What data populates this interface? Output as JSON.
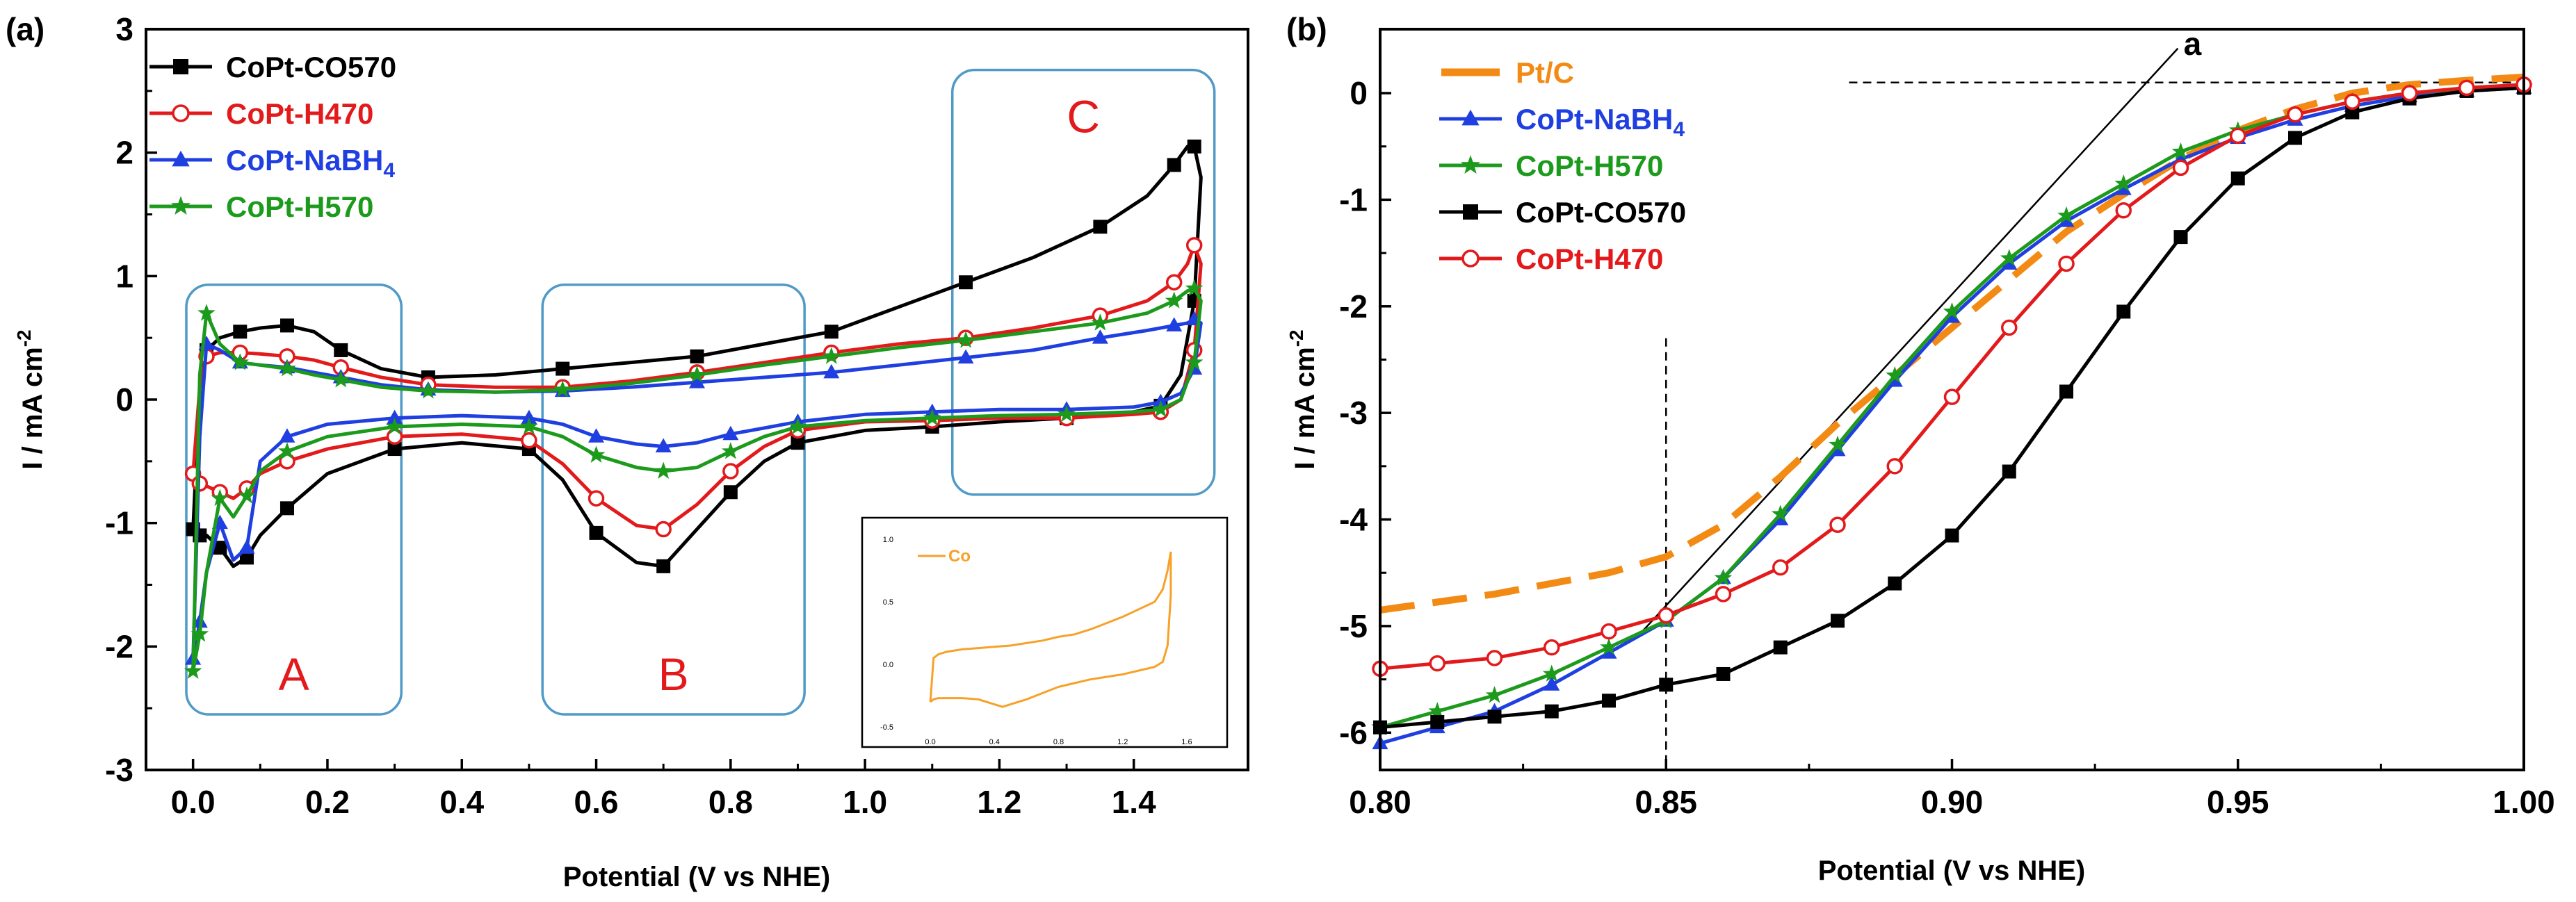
{
  "chart_data": [
    {
      "panel": "(a)",
      "type": "line",
      "xlabel": "Potential (V vs NHE)",
      "ylabel": "I / mA cm",
      "ylabel_sup": "-2",
      "xlim": [
        -0.07,
        1.57
      ],
      "ylim": [
        -3,
        3
      ],
      "xticks": [
        "0.0",
        "0.2",
        "0.4",
        "0.6",
        "0.8",
        "1.0",
        "1.2",
        "1.4"
      ],
      "yticks": [
        "3",
        "2",
        "1",
        "0",
        "-1",
        "-2",
        "-3"
      ],
      "regions": [
        {
          "label": "A",
          "x": [
            -0.01,
            0.31
          ],
          "y": [
            -2.55,
            0.93
          ]
        },
        {
          "label": "B",
          "x": [
            0.52,
            0.91
          ],
          "y": [
            -2.55,
            0.93
          ]
        },
        {
          "label": "C",
          "x": [
            1.13,
            1.52
          ],
          "y": [
            -0.77,
            2.67
          ]
        }
      ],
      "series": [
        {
          "name": "CoPt-CO570",
          "color": "#000000",
          "marker": "square",
          "x": [
            0.0,
            0.01,
            0.02,
            0.04,
            0.07,
            0.1,
            0.14,
            0.18,
            0.22,
            0.28,
            0.35,
            0.45,
            0.55,
            0.65,
            0.75,
            0.85,
            0.95,
            1.05,
            1.15,
            1.25,
            1.35,
            1.42,
            1.46,
            1.48,
            1.49,
            1.5,
            1.49,
            1.47,
            1.44,
            1.4,
            1.3,
            1.2,
            1.1,
            1.0,
            0.9,
            0.85,
            0.8,
            0.75,
            0.7,
            0.66,
            0.6,
            0.55,
            0.5,
            0.4,
            0.3,
            0.2,
            0.14,
            0.1,
            0.08,
            0.06,
            0.04,
            0.02,
            0.01,
            0.0
          ],
          "y": [
            -1.05,
            0.1,
            0.4,
            0.5,
            0.55,
            0.58,
            0.6,
            0.55,
            0.4,
            0.25,
            0.18,
            0.2,
            0.25,
            0.3,
            0.35,
            0.45,
            0.55,
            0.75,
            0.95,
            1.15,
            1.4,
            1.65,
            1.9,
            2.05,
            2.05,
            1.8,
            0.8,
            0.2,
            -0.05,
            -0.1,
            -0.15,
            -0.18,
            -0.22,
            -0.25,
            -0.35,
            -0.5,
            -0.75,
            -1.05,
            -1.35,
            -1.32,
            -1.08,
            -0.65,
            -0.4,
            -0.35,
            -0.4,
            -0.6,
            -0.88,
            -1.1,
            -1.28,
            -1.35,
            -1.2,
            -1.1,
            -1.1,
            -1.05
          ]
        },
        {
          "name": "CoPt-H470",
          "color": "#e31a1c",
          "marker": "circle",
          "x": [
            0.0,
            0.01,
            0.02,
            0.04,
            0.07,
            0.1,
            0.14,
            0.18,
            0.22,
            0.28,
            0.35,
            0.45,
            0.55,
            0.65,
            0.75,
            0.85,
            0.95,
            1.05,
            1.15,
            1.25,
            1.35,
            1.42,
            1.46,
            1.48,
            1.49,
            1.5,
            1.49,
            1.47,
            1.44,
            1.4,
            1.3,
            1.2,
            1.1,
            1.0,
            0.9,
            0.85,
            0.8,
            0.75,
            0.7,
            0.66,
            0.6,
            0.55,
            0.5,
            0.4,
            0.3,
            0.2,
            0.14,
            0.1,
            0.08,
            0.06,
            0.04,
            0.02,
            0.01,
            0.0
          ],
          "y": [
            -0.6,
            0.1,
            0.35,
            0.38,
            0.38,
            0.37,
            0.35,
            0.32,
            0.26,
            0.18,
            0.12,
            0.1,
            0.1,
            0.15,
            0.22,
            0.3,
            0.38,
            0.45,
            0.5,
            0.58,
            0.68,
            0.8,
            0.95,
            1.1,
            1.25,
            1.1,
            0.4,
            0.0,
            -0.1,
            -0.12,
            -0.15,
            -0.15,
            -0.17,
            -0.18,
            -0.25,
            -0.38,
            -0.58,
            -0.85,
            -1.05,
            -1.02,
            -0.8,
            -0.52,
            -0.33,
            -0.28,
            -0.3,
            -0.4,
            -0.5,
            -0.6,
            -0.72,
            -0.8,
            -0.75,
            -0.7,
            -0.68,
            -0.6
          ]
        },
        {
          "name": "CoPt-NaBH4",
          "color": "#1f3fe0",
          "marker": "triangle",
          "x": [
            0.0,
            0.01,
            0.02,
            0.04,
            0.07,
            0.1,
            0.14,
            0.18,
            0.22,
            0.28,
            0.35,
            0.45,
            0.55,
            0.65,
            0.75,
            0.85,
            0.95,
            1.05,
            1.15,
            1.25,
            1.35,
            1.42,
            1.46,
            1.48,
            1.49,
            1.5,
            1.49,
            1.47,
            1.44,
            1.4,
            1.3,
            1.2,
            1.1,
            1.0,
            0.9,
            0.85,
            0.8,
            0.75,
            0.7,
            0.66,
            0.6,
            0.55,
            0.5,
            0.4,
            0.3,
            0.2,
            0.14,
            0.1,
            0.08,
            0.06,
            0.04,
            0.02,
            0.01,
            0.0
          ],
          "y": [
            -2.1,
            -0.3,
            0.45,
            0.4,
            0.3,
            0.28,
            0.26,
            0.22,
            0.18,
            0.12,
            0.08,
            0.06,
            0.07,
            0.1,
            0.14,
            0.18,
            0.22,
            0.28,
            0.34,
            0.4,
            0.5,
            0.56,
            0.6,
            0.62,
            0.65,
            0.62,
            0.25,
            0.05,
            -0.02,
            -0.06,
            -0.08,
            -0.08,
            -0.1,
            -0.12,
            -0.18,
            -0.23,
            -0.28,
            -0.35,
            -0.38,
            -0.36,
            -0.3,
            -0.2,
            -0.15,
            -0.13,
            -0.15,
            -0.2,
            -0.3,
            -0.5,
            -1.2,
            -1.3,
            -1.0,
            -1.4,
            -1.8,
            -2.1
          ]
        },
        {
          "name": "CoPt-H570",
          "color": "#1c9a1c",
          "marker": "star",
          "x": [
            0.0,
            0.01,
            0.02,
            0.04,
            0.07,
            0.1,
            0.14,
            0.18,
            0.22,
            0.28,
            0.35,
            0.45,
            0.55,
            0.65,
            0.75,
            0.85,
            0.95,
            1.05,
            1.15,
            1.25,
            1.35,
            1.42,
            1.46,
            1.48,
            1.49,
            1.5,
            1.49,
            1.47,
            1.44,
            1.4,
            1.3,
            1.2,
            1.1,
            1.0,
            0.9,
            0.85,
            0.8,
            0.75,
            0.7,
            0.66,
            0.6,
            0.55,
            0.5,
            0.4,
            0.3,
            0.2,
            0.14,
            0.1,
            0.08,
            0.06,
            0.04,
            0.02,
            0.01,
            0.0
          ],
          "y": [
            -2.2,
            0.2,
            0.7,
            0.45,
            0.3,
            0.28,
            0.25,
            0.2,
            0.16,
            0.1,
            0.07,
            0.06,
            0.08,
            0.13,
            0.2,
            0.28,
            0.35,
            0.42,
            0.48,
            0.55,
            0.62,
            0.7,
            0.8,
            0.88,
            0.9,
            0.8,
            0.3,
            0.0,
            -0.08,
            -0.1,
            -0.12,
            -0.13,
            -0.15,
            -0.17,
            -0.22,
            -0.3,
            -0.42,
            -0.55,
            -0.58,
            -0.55,
            -0.45,
            -0.3,
            -0.22,
            -0.2,
            -0.22,
            -0.3,
            -0.42,
            -0.58,
            -0.78,
            -0.95,
            -0.8,
            -1.4,
            -1.9,
            -2.2
          ]
        }
      ],
      "inset": {
        "legend": "Co",
        "xticks": [
          "0.0",
          "0.4",
          "0.8",
          "1.2",
          "1.6"
        ],
        "yticks": [
          "1.0",
          "0.5",
          "0.0",
          "-0.5"
        ],
        "xlim": [
          -0.1,
          1.7
        ],
        "ylim": [
          -0.55,
          1.05
        ],
        "color": "#f7a128",
        "x": [
          0.0,
          0.02,
          0.05,
          0.1,
          0.2,
          0.3,
          0.4,
          0.5,
          0.6,
          0.7,
          0.8,
          0.9,
          1.0,
          1.1,
          1.2,
          1.3,
          1.4,
          1.45,
          1.48,
          1.5,
          1.5,
          1.48,
          1.45,
          1.4,
          1.3,
          1.2,
          1.1,
          1.0,
          0.9,
          0.8,
          0.7,
          0.6,
          0.5,
          0.45,
          0.4,
          0.3,
          0.2,
          0.1,
          0.05,
          0.02,
          0.0
        ],
        "y": [
          -0.3,
          0.05,
          0.08,
          0.1,
          0.12,
          0.13,
          0.14,
          0.15,
          0.17,
          0.19,
          0.22,
          0.24,
          0.28,
          0.33,
          0.38,
          0.44,
          0.5,
          0.6,
          0.75,
          0.9,
          0.55,
          0.15,
          0.02,
          -0.02,
          -0.05,
          -0.08,
          -0.1,
          -0.12,
          -0.15,
          -0.18,
          -0.23,
          -0.28,
          -0.32,
          -0.34,
          -0.32,
          -0.28,
          -0.27,
          -0.27,
          -0.27,
          -0.28,
          -0.3
        ]
      }
    },
    {
      "panel": "(b)",
      "type": "line",
      "xlabel": "Potential (V vs NHE)",
      "ylabel": "I / mA cm",
      "ylabel_sup": "-2",
      "xlim": [
        0.8,
        1.0
      ],
      "ylim": [
        -6.35,
        0.6
      ],
      "xticks": [
        "0.80",
        "0.85",
        "0.90",
        "0.95",
        "1.00"
      ],
      "yticks": [
        "0",
        "-1",
        "-2",
        "-3",
        "-4",
        "-5",
        "-6"
      ],
      "annotation": "a",
      "series": [
        {
          "name": "Pt/C",
          "color": "#f28a14",
          "style": "dashed",
          "x": [
            0.8,
            0.82,
            0.84,
            0.85,
            0.86,
            0.87,
            0.88,
            0.89,
            0.9,
            0.91,
            0.92,
            0.93,
            0.94,
            0.95,
            0.96,
            0.97,
            0.98,
            0.99,
            1.0
          ],
          "y": [
            -4.85,
            -4.7,
            -4.5,
            -4.35,
            -4.05,
            -3.6,
            -3.1,
            -2.65,
            -2.2,
            -1.75,
            -1.3,
            -0.95,
            -0.62,
            -0.35,
            -0.15,
            0.0,
            0.08,
            0.12,
            0.15
          ]
        },
        {
          "name": "CoPt-NaBH4",
          "color": "#1f3fe0",
          "marker": "triangle",
          "x": [
            0.8,
            0.81,
            0.82,
            0.83,
            0.84,
            0.85,
            0.86,
            0.87,
            0.88,
            0.89,
            0.9,
            0.91,
            0.92,
            0.93,
            0.94,
            0.95,
            0.96,
            0.97,
            0.98,
            0.99,
            1.0
          ],
          "y": [
            -6.1,
            -5.95,
            -5.8,
            -5.55,
            -5.25,
            -4.95,
            -4.55,
            -4.0,
            -3.35,
            -2.7,
            -2.1,
            -1.6,
            -1.2,
            -0.9,
            -0.62,
            -0.42,
            -0.25,
            -0.12,
            -0.03,
            0.02,
            0.05
          ]
        },
        {
          "name": "CoPt-H570",
          "color": "#1c9a1c",
          "marker": "star",
          "x": [
            0.8,
            0.81,
            0.82,
            0.83,
            0.84,
            0.85,
            0.86,
            0.87,
            0.88,
            0.89,
            0.9,
            0.91,
            0.92,
            0.93,
            0.94,
            0.95,
            0.96,
            0.97,
            0.98,
            0.99,
            1.0
          ],
          "y": [
            -5.95,
            -5.8,
            -5.65,
            -5.45,
            -5.2,
            -4.95,
            -4.55,
            -3.95,
            -3.3,
            -2.65,
            -2.05,
            -1.55,
            -1.15,
            -0.85,
            -0.55,
            -0.35,
            -0.2,
            -0.08,
            0.0,
            0.04,
            0.06
          ]
        },
        {
          "name": "CoPt-CO570",
          "color": "#000000",
          "marker": "square",
          "x": [
            0.8,
            0.81,
            0.82,
            0.83,
            0.84,
            0.85,
            0.86,
            0.87,
            0.88,
            0.89,
            0.9,
            0.91,
            0.92,
            0.93,
            0.94,
            0.95,
            0.96,
            0.97,
            0.98,
            0.99,
            1.0
          ],
          "y": [
            -5.95,
            -5.9,
            -5.85,
            -5.8,
            -5.7,
            -5.55,
            -5.45,
            -5.2,
            -4.95,
            -4.6,
            -4.15,
            -3.55,
            -2.8,
            -2.05,
            -1.35,
            -0.8,
            -0.42,
            -0.18,
            -0.05,
            0.02,
            0.05
          ]
        },
        {
          "name": "CoPt-H470",
          "color": "#e31a1c",
          "marker": "circle",
          "x": [
            0.8,
            0.81,
            0.82,
            0.83,
            0.84,
            0.85,
            0.86,
            0.87,
            0.88,
            0.89,
            0.9,
            0.91,
            0.92,
            0.93,
            0.94,
            0.95,
            0.96,
            0.97,
            0.98,
            0.99,
            1.0
          ],
          "y": [
            -5.4,
            -5.35,
            -5.3,
            -5.2,
            -5.05,
            -4.9,
            -4.7,
            -4.45,
            -4.05,
            -3.5,
            -2.85,
            -2.2,
            -1.6,
            -1.1,
            -0.7,
            -0.4,
            -0.2,
            -0.08,
            0.0,
            0.05,
            0.08
          ]
        }
      ]
    }
  ],
  "legend_a": [
    {
      "label": "CoPt-CO570",
      "sub": "",
      "color": "#000000",
      "marker": "square"
    },
    {
      "label": "CoPt-H470",
      "sub": "",
      "color": "#e31a1c",
      "marker": "circle"
    },
    {
      "label": "CoPt-NaBH",
      "sub": "4",
      "color": "#1f3fe0",
      "marker": "triangle"
    },
    {
      "label": "CoPt-H570",
      "sub": "",
      "color": "#1c9a1c",
      "marker": "star"
    }
  ],
  "legend_b": [
    {
      "label": "Pt/C",
      "sub": "",
      "color": "#f28a14",
      "marker": "dash"
    },
    {
      "label": "CoPt-NaBH",
      "sub": "4",
      "color": "#1f3fe0",
      "marker": "triangle"
    },
    {
      "label": "CoPt-H570",
      "sub": "",
      "color": "#1c9a1c",
      "marker": "star"
    },
    {
      "label": "CoPt-CO570",
      "sub": "",
      "color": "#000000",
      "marker": "square"
    },
    {
      "label": "CoPt-H470",
      "sub": "",
      "color": "#e31a1c",
      "marker": "circle"
    }
  ]
}
